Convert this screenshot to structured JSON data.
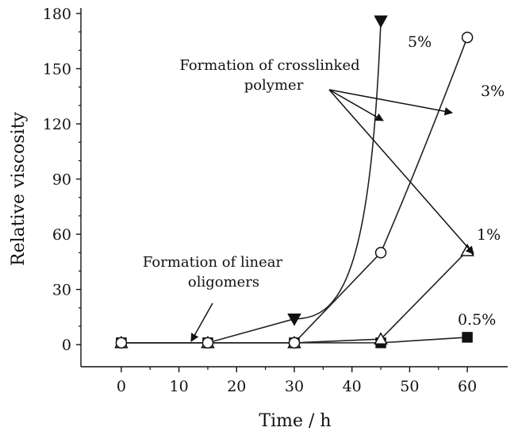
{
  "chart_data": {
    "type": "line",
    "xlabel": "Time / h",
    "ylabel": "Relative viscosity",
    "xlim": [
      -7,
      67
    ],
    "ylim": [
      -12,
      183
    ],
    "xticks": [
      0,
      10,
      20,
      30,
      40,
      50,
      60
    ],
    "yticks": [
      0,
      30,
      60,
      90,
      120,
      150,
      180
    ],
    "grid": false,
    "series": [
      {
        "name": "0.5%",
        "marker": "filled-square",
        "x": [
          0,
          15,
          30,
          45,
          60
        ],
        "y": [
          1,
          1,
          1,
          1,
          4
        ]
      },
      {
        "name": "1%",
        "marker": "open-triangle",
        "x": [
          0,
          15,
          30,
          45,
          60
        ],
        "y": [
          1,
          1,
          1,
          3,
          51
        ]
      },
      {
        "name": "3%",
        "marker": "open-circle",
        "x": [
          0,
          15,
          30,
          45,
          60
        ],
        "y": [
          1,
          1,
          1,
          50,
          167
        ]
      },
      {
        "name": "5%",
        "marker": "filled-triangle-down",
        "x": [
          0,
          15,
          30,
          45
        ],
        "y": [
          1,
          1,
          14,
          176
        ]
      }
    ],
    "annotations": [
      {
        "lines": [
          "Formation of crosslinked",
          "polymer"
        ]
      },
      {
        "lines": [
          "Formation of linear",
          "oligomers"
        ]
      }
    ]
  }
}
